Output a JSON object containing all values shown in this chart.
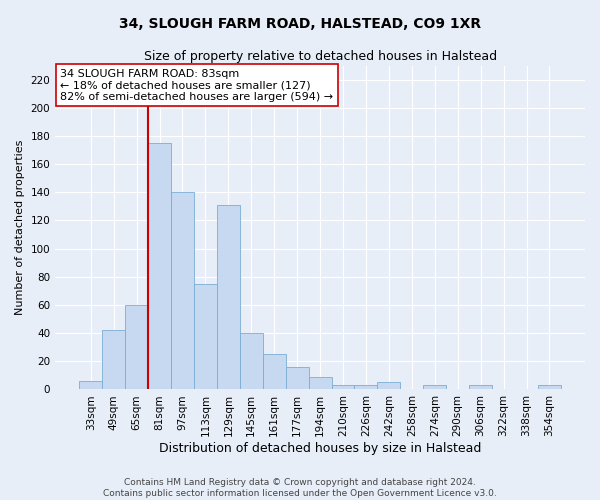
{
  "title": "34, SLOUGH FARM ROAD, HALSTEAD, CO9 1XR",
  "subtitle": "Size of property relative to detached houses in Halstead",
  "xlabel": "Distribution of detached houses by size in Halstead",
  "ylabel": "Number of detached properties",
  "categories": [
    "33sqm",
    "49sqm",
    "65sqm",
    "81sqm",
    "97sqm",
    "113sqm",
    "129sqm",
    "145sqm",
    "161sqm",
    "177sqm",
    "194sqm",
    "210sqm",
    "226sqm",
    "242sqm",
    "258sqm",
    "274sqm",
    "290sqm",
    "306sqm",
    "322sqm",
    "338sqm",
    "354sqm"
  ],
  "values": [
    6,
    42,
    60,
    175,
    140,
    75,
    131,
    40,
    25,
    16,
    9,
    3,
    3,
    5,
    0,
    3,
    0,
    3,
    0,
    0,
    3
  ],
  "bar_color": "#c6d9f0",
  "bar_edge_color": "#7aadd4",
  "vline_color": "#cc0000",
  "vline_x_index": 3,
  "annotation_text": "34 SLOUGH FARM ROAD: 83sqm\n← 18% of detached houses are smaller (127)\n82% of semi-detached houses are larger (594) →",
  "annotation_box_color": "white",
  "annotation_box_edge": "#cc0000",
  "ylim": [
    0,
    230
  ],
  "yticks": [
    0,
    20,
    40,
    60,
    80,
    100,
    120,
    140,
    160,
    180,
    200,
    220
  ],
  "footer": "Contains HM Land Registry data © Crown copyright and database right 2024.\nContains public sector information licensed under the Open Government Licence v3.0.",
  "bg_color": "#e8eef8",
  "grid_color": "#ffffff",
  "title_fontsize": 10,
  "subtitle_fontsize": 9,
  "xlabel_fontsize": 9,
  "ylabel_fontsize": 8,
  "tick_fontsize": 7.5,
  "annotation_fontsize": 8,
  "footer_fontsize": 6.5
}
